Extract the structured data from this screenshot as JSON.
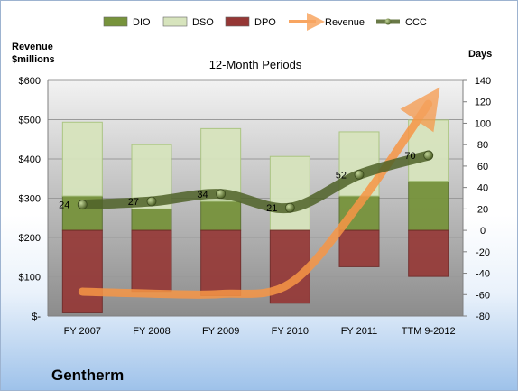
{
  "chart_data": {
    "type": "bar",
    "title": "12-Month Periods",
    "company": "Gentherm",
    "left_axis_label_line1": "Revenue",
    "left_axis_label_line2": "$millions",
    "right_axis_label": "Days",
    "categories": [
      "FY 2007",
      "FY 2008",
      "FY 2009",
      "FY 2010",
      "FY 2011",
      "TTM 9-2012"
    ],
    "left_ticks": [
      "$-",
      "$100",
      "$200",
      "$300",
      "$400",
      "$500",
      "$600"
    ],
    "left_ylim": [
      0,
      600
    ],
    "right_ylim": [
      -80,
      140
    ],
    "right_ticks": [
      -80,
      -60,
      -40,
      -20,
      0,
      20,
      40,
      60,
      80,
      100,
      120,
      140
    ],
    "legend_placement": "top",
    "series": [
      {
        "name": "DIO",
        "kind": "stacked-bar-days",
        "color": "#77933c",
        "values": [
          32,
          20,
          27,
          0,
          32,
          46
        ]
      },
      {
        "name": "DSO",
        "kind": "stacked-bar-days",
        "color": "#d7e4bd",
        "values": [
          69,
          60,
          68,
          69,
          60,
          57
        ]
      },
      {
        "name": "DPO",
        "kind": "negative-bar-days",
        "color": "#953735",
        "values": [
          -77,
          -57,
          -61,
          -68,
          -34,
          -43
        ]
      },
      {
        "name": "Revenue",
        "kind": "line-revenue",
        "color": "#f79646",
        "values": [
          62,
          57,
          56,
          83,
          285,
          540
        ]
      },
      {
        "name": "CCC",
        "kind": "line-days",
        "color": "#4f6228",
        "values": [
          24,
          27,
          34,
          21,
          52,
          70
        ]
      }
    ],
    "ccc_labels": [
      "24",
      "27",
      "34",
      "21",
      "52",
      "70"
    ]
  }
}
